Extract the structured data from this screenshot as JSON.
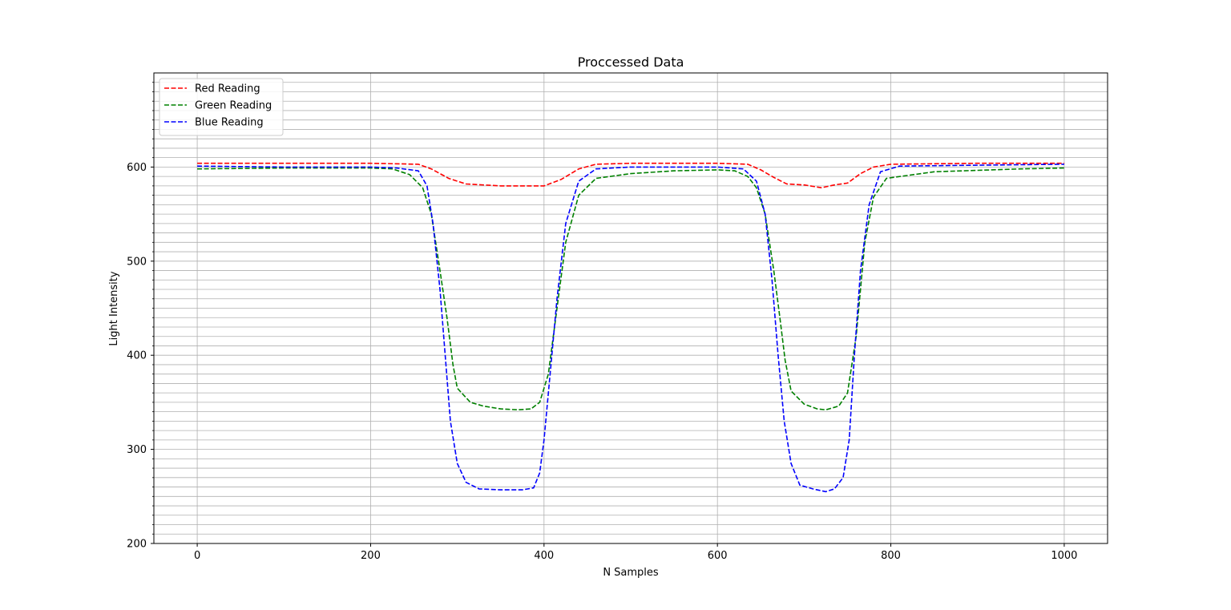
{
  "chart_data": {
    "type": "line",
    "title": "Proccessed Data",
    "xlabel": "N Samples",
    "ylabel": "Light Intensity",
    "xlim": [
      -50,
      1050
    ],
    "ylim": [
      200,
      700
    ],
    "xticks": [
      0,
      200,
      400,
      600,
      800,
      1000
    ],
    "yticks": [
      200,
      300,
      400,
      500,
      600
    ],
    "grid": "major x, major and minor y",
    "legend_position": "upper-left",
    "series": [
      {
        "name": "Red Reading",
        "color": "#ff0000",
        "points": [
          [
            0,
            604
          ],
          [
            100,
            604
          ],
          [
            200,
            604
          ],
          [
            255,
            603
          ],
          [
            270,
            598
          ],
          [
            290,
            588
          ],
          [
            310,
            582
          ],
          [
            350,
            580
          ],
          [
            380,
            580
          ],
          [
            400,
            580
          ],
          [
            420,
            587
          ],
          [
            440,
            598
          ],
          [
            460,
            603
          ],
          [
            500,
            604
          ],
          [
            600,
            604
          ],
          [
            635,
            603
          ],
          [
            650,
            597
          ],
          [
            665,
            589
          ],
          [
            680,
            582
          ],
          [
            700,
            581
          ],
          [
            720,
            578
          ],
          [
            735,
            581
          ],
          [
            750,
            583
          ],
          [
            765,
            593
          ],
          [
            780,
            600
          ],
          [
            800,
            603
          ],
          [
            900,
            604
          ],
          [
            1000,
            604
          ]
        ]
      },
      {
        "name": "Green Reading",
        "color": "#008000",
        "points": [
          [
            0,
            598
          ],
          [
            100,
            599
          ],
          [
            200,
            599
          ],
          [
            225,
            598
          ],
          [
            245,
            592
          ],
          [
            260,
            578
          ],
          [
            270,
            550
          ],
          [
            280,
            490
          ],
          [
            288,
            440
          ],
          [
            295,
            390
          ],
          [
            300,
            365
          ],
          [
            315,
            350
          ],
          [
            330,
            346
          ],
          [
            350,
            343
          ],
          [
            370,
            342
          ],
          [
            385,
            343
          ],
          [
            395,
            350
          ],
          [
            405,
            380
          ],
          [
            415,
            450
          ],
          [
            425,
            520
          ],
          [
            440,
            570
          ],
          [
            460,
            588
          ],
          [
            500,
            593
          ],
          [
            550,
            596
          ],
          [
            600,
            597
          ],
          [
            620,
            596
          ],
          [
            635,
            590
          ],
          [
            645,
            578
          ],
          [
            655,
            550
          ],
          [
            665,
            490
          ],
          [
            672,
            440
          ],
          [
            678,
            395
          ],
          [
            685,
            362
          ],
          [
            700,
            348
          ],
          [
            715,
            343
          ],
          [
            725,
            342
          ],
          [
            740,
            346
          ],
          [
            750,
            360
          ],
          [
            760,
            420
          ],
          [
            770,
            520
          ],
          [
            780,
            568
          ],
          [
            795,
            588
          ],
          [
            850,
            595
          ],
          [
            950,
            598
          ],
          [
            1000,
            599
          ]
        ]
      },
      {
        "name": "Blue Reading",
        "color": "#0000ff",
        "points": [
          [
            0,
            601
          ],
          [
            100,
            600
          ],
          [
            200,
            600
          ],
          [
            230,
            599
          ],
          [
            255,
            596
          ],
          [
            265,
            580
          ],
          [
            272,
            540
          ],
          [
            280,
            470
          ],
          [
            286,
            400
          ],
          [
            292,
            330
          ],
          [
            300,
            285
          ],
          [
            310,
            265
          ],
          [
            325,
            258
          ],
          [
            350,
            257
          ],
          [
            375,
            257
          ],
          [
            388,
            259
          ],
          [
            395,
            275
          ],
          [
            400,
            310
          ],
          [
            408,
            390
          ],
          [
            415,
            460
          ],
          [
            425,
            540
          ],
          [
            440,
            585
          ],
          [
            460,
            598
          ],
          [
            500,
            600
          ],
          [
            600,
            600
          ],
          [
            630,
            598
          ],
          [
            645,
            585
          ],
          [
            655,
            550
          ],
          [
            663,
            480
          ],
          [
            670,
            400
          ],
          [
            677,
            330
          ],
          [
            685,
            285
          ],
          [
            695,
            262
          ],
          [
            710,
            258
          ],
          [
            725,
            255
          ],
          [
            735,
            258
          ],
          [
            745,
            270
          ],
          [
            752,
            310
          ],
          [
            758,
            400
          ],
          [
            765,
            490
          ],
          [
            775,
            560
          ],
          [
            788,
            595
          ],
          [
            810,
            601
          ],
          [
            900,
            602
          ],
          [
            1000,
            603
          ]
        ]
      }
    ]
  }
}
